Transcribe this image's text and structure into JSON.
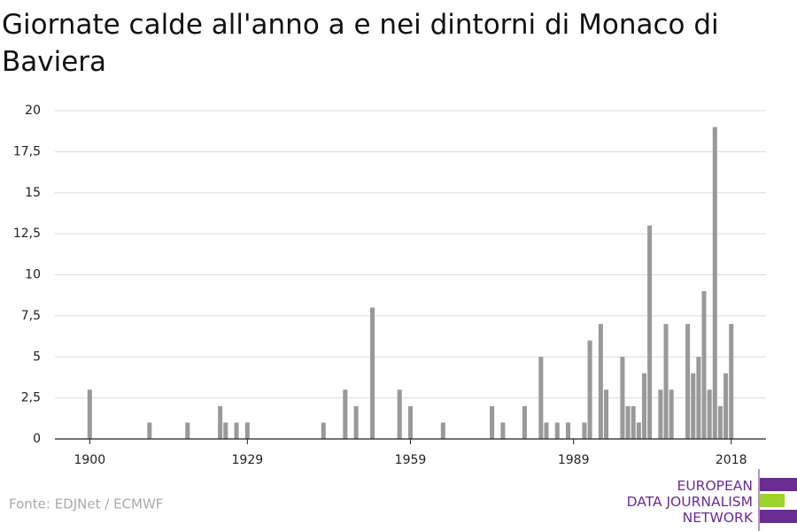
{
  "chart_data": {
    "type": "bar",
    "title": "Giornate calde all'anno a e nei dintorni di Monaco di Baviera",
    "source": "Fonte: EDJNet / ECMWF",
    "logo": [
      "EUROPEAN",
      "DATA JOURNALISM",
      "NETWORK"
    ],
    "color": "#999999",
    "x": [
      1900,
      1911,
      1918,
      1924,
      1925,
      1927,
      1929,
      1943,
      1947,
      1949,
      1952,
      1957,
      1959,
      1965,
      1974,
      1976,
      1980,
      1983,
      1984,
      1986,
      1988,
      1991,
      1992,
      1994,
      1995,
      1998,
      1999,
      2000,
      2001,
      2002,
      2003,
      2005,
      2006,
      2007,
      2010,
      2011,
      2012,
      2013,
      2014,
      2015,
      2016,
      2017,
      2018
    ],
    "values": [
      3,
      1,
      1,
      2,
      1,
      1,
      1,
      1,
      3,
      2,
      8,
      3,
      2,
      1,
      2,
      1,
      2,
      5,
      1,
      1,
      1,
      1,
      6,
      7,
      3,
      5,
      2,
      2,
      1,
      4,
      13,
      3,
      7,
      3,
      7,
      4,
      5,
      9,
      3,
      19,
      2,
      4,
      7
    ],
    "xlim": [
      1893.6,
      2024.4
    ],
    "xticks": [
      1900,
      1929,
      1959,
      1989,
      2018
    ],
    "ylim": [
      0,
      20
    ],
    "yticks": [
      0,
      {
        "value": 2.5,
        "label": "2,5"
      },
      5,
      {
        "value": 7.5,
        "label": "7,5"
      },
      10,
      {
        "value": 12.5,
        "label": "12,5"
      },
      15,
      {
        "value": 17.5,
        "label": "17,5"
      },
      20
    ],
    "grid": true
  }
}
